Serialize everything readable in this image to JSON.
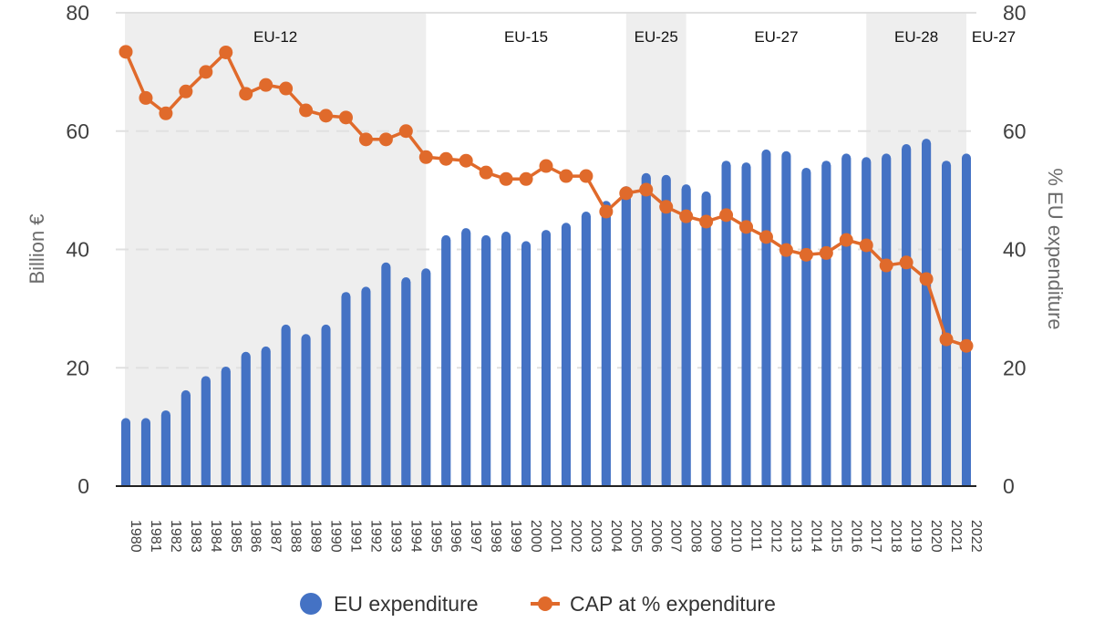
{
  "chart_data": {
    "type": "bar",
    "title": "",
    "xlabel": "",
    "ylabel": "Billion €",
    "y2label": "% EU expenditure",
    "ylim": [
      0,
      80
    ],
    "y2lim": [
      0,
      80
    ],
    "yticks": [
      0,
      20,
      40,
      60,
      80
    ],
    "y2ticks": [
      0,
      20,
      40,
      60,
      80
    ],
    "grid": true,
    "legend_position": "bottom",
    "categories": [
      "1980",
      "1981",
      "1982",
      "1983",
      "1984",
      "1985",
      "1986",
      "1987",
      "1988",
      "1989",
      "1990",
      "1991",
      "1992",
      "1993",
      "1994",
      "1995",
      "1996",
      "1997",
      "1998",
      "1999",
      "2000",
      "2001",
      "2002",
      "2003",
      "2004",
      "2005",
      "2006",
      "2007",
      "2008",
      "2009",
      "2010",
      "2011",
      "2012",
      "2013",
      "2014",
      "2015",
      "2016",
      "2017",
      "2018",
      "2019",
      "2020",
      "2021",
      "2022"
    ],
    "series": [
      {
        "name": "EU expenditure",
        "type": "bar",
        "axis": "left",
        "color": "#4472c4",
        "values": [
          11.5,
          11.5,
          12.8,
          16.2,
          18.6,
          20.2,
          22.7,
          23.6,
          27.3,
          25.7,
          27.3,
          32.8,
          33.7,
          37.8,
          35.3,
          36.8,
          42.4,
          43.6,
          42.4,
          43.0,
          41.4,
          43.3,
          44.5,
          46.4,
          48.2,
          50.7,
          52.9,
          52.6,
          51.0,
          49.8,
          55.0,
          54.7,
          56.9,
          56.6,
          53.8,
          55.0,
          56.2,
          55.6,
          56.2,
          57.8,
          58.7,
          55.0,
          56.2
        ]
      },
      {
        "name": "CAP at % expenditure",
        "type": "line",
        "axis": "right",
        "color": "#e06a2b",
        "values": [
          73.4,
          65.6,
          63.0,
          66.7,
          70.0,
          73.3,
          66.3,
          67.8,
          67.2,
          63.5,
          62.6,
          62.3,
          58.6,
          58.6,
          60.0,
          55.6,
          55.3,
          55.0,
          53.0,
          51.9,
          51.9,
          54.1,
          52.4,
          52.4,
          46.4,
          49.5,
          50.1,
          47.2,
          45.6,
          44.7,
          45.8,
          43.8,
          42.1,
          39.9,
          39.1,
          39.4,
          41.6,
          40.7,
          37.3,
          37.8,
          35.0,
          24.8,
          23.7
        ]
      }
    ],
    "bands": [
      {
        "label": "EU-12",
        "from": "1980",
        "to": "1995",
        "shaded": true
      },
      {
        "label": "EU-15",
        "from": "1995",
        "to": "2005",
        "shaded": false
      },
      {
        "label": "EU-25",
        "from": "2005",
        "to": "2008",
        "shaded": true
      },
      {
        "label": "EU-27",
        "from": "2008",
        "to": "2017",
        "shaded": false
      },
      {
        "label": "EU-28",
        "from": "2017",
        "to": "2022",
        "shaded": true
      },
      {
        "label": "EU-27",
        "from": "2022",
        "to": "2022",
        "shaded": false
      }
    ]
  },
  "colors": {
    "band_fill": "#eeeeee",
    "grid": "#e0e0e0",
    "axis_line": "#222222"
  }
}
